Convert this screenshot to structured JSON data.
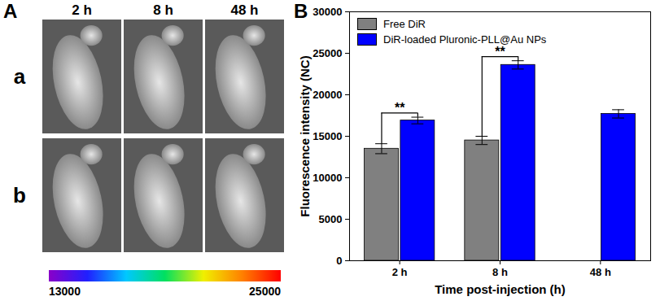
{
  "panel_a": {
    "label": "A",
    "columns": [
      "2 h",
      "8 h",
      "48 h"
    ],
    "rows": [
      "a",
      "b"
    ],
    "colorbar": {
      "range": [
        13000,
        25000
      ],
      "ticks": [
        13000,
        25000
      ]
    }
  },
  "chart_data": {
    "panel_label": "B",
    "type": "bar",
    "x_label": "Time post-injection (h)",
    "y_label": "Fluorescence intensity (NC)",
    "categories": [
      "2 h",
      "8 h",
      "48 h"
    ],
    "series": [
      {
        "name": "Free DiR",
        "color": "#808080",
        "values": [
          13500,
          14500,
          null
        ],
        "errors": [
          600,
          500,
          null
        ]
      },
      {
        "name": "DiR-loaded Pluronic-PLL@Au NPs",
        "color": "#0000ff",
        "values": [
          16900,
          23600,
          17700
        ],
        "errors": [
          400,
          500,
          500
        ]
      }
    ],
    "ylim": [
      0,
      30000
    ],
    "yticks": [
      0,
      5000,
      10000,
      15000,
      20000,
      25000,
      30000
    ],
    "legend": "top-left",
    "annotations": [
      {
        "text": "**",
        "category": "2 h",
        "y": 17800
      },
      {
        "text": "**",
        "category": "8 h",
        "y": 24600
      }
    ]
  }
}
